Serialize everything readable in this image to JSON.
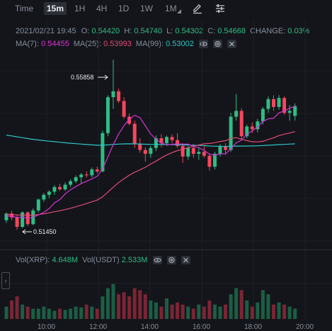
{
  "toolbar": {
    "time_label": "Time",
    "intervals": [
      "15m",
      "1H",
      "4H",
      "1D",
      "1W",
      "1M"
    ],
    "active_interval": "15m"
  },
  "ohlc": {
    "datetime": "2021/02/21 19:45",
    "o_label": "O:",
    "o": "0.54420",
    "h_label": "H:",
    "h": "0.54740",
    "l_label": "L:",
    "l": "0.54302",
    "c_label": "C:",
    "c": "0.54668",
    "change_label": "CHANGE:",
    "change": "0.03%"
  },
  "ma": {
    "ma7_label": "MA(7):",
    "ma7": "0.54455",
    "ma25_label": "MA(25):",
    "ma25": "0.53993",
    "ma99_label": "MA(99):",
    "ma99": "0.53002"
  },
  "annotations": {
    "high": "0.55858",
    "low": "0.51450"
  },
  "volume": {
    "vol_xrp_label": "Vol(XRP):",
    "vol_xrp": "4.648M",
    "vol_usdt_label": "Vol(USDT)",
    "vol_usdt": "2.533M"
  },
  "x_axis": [
    "10:00",
    "12:00",
    "14:00",
    "16:00",
    "18:00",
    "20:00"
  ],
  "colors": {
    "up": "#2ebd85",
    "down": "#f6465d",
    "ma7": "#d633d6",
    "ma25": "#e64a77",
    "ma99": "#2bc6c7",
    "background": "#14151a"
  },
  "icons": [
    "pencil-icon",
    "settings-sliders-icon",
    "eye-icon",
    "settings-icon",
    "close-icon",
    "chevron-right-icon"
  ],
  "chart_data": {
    "type": "candlestick",
    "symbol": "XRP/USDT",
    "interval": "15m",
    "x_ticks": [
      "10:00",
      "12:00",
      "14:00",
      "16:00",
      "18:00",
      "20:00"
    ],
    "ohlc": [
      [
        0.5175,
        0.5195,
        0.5168,
        0.5192
      ],
      [
        0.5192,
        0.5199,
        0.5175,
        0.5182
      ],
      [
        0.5182,
        0.519,
        0.5151,
        0.5158
      ],
      [
        0.5158,
        0.5198,
        0.5155,
        0.5195
      ],
      [
        0.5195,
        0.5198,
        0.516,
        0.5165
      ],
      [
        0.5165,
        0.5205,
        0.5162,
        0.52
      ],
      [
        0.52,
        0.523,
        0.5195,
        0.5228
      ],
      [
        0.5228,
        0.5245,
        0.5222,
        0.524
      ],
      [
        0.524,
        0.5252,
        0.5232,
        0.5248
      ],
      [
        0.5248,
        0.5265,
        0.524,
        0.526
      ],
      [
        0.526,
        0.5268,
        0.525,
        0.5254
      ],
      [
        0.5254,
        0.5272,
        0.525,
        0.5266
      ],
      [
        0.5266,
        0.528,
        0.526,
        0.5275
      ],
      [
        0.5275,
        0.529,
        0.527,
        0.5285
      ],
      [
        0.5285,
        0.5296,
        0.527,
        0.5292
      ],
      [
        0.5292,
        0.53,
        0.5284,
        0.529
      ],
      [
        0.529,
        0.531,
        0.5285,
        0.5305
      ],
      [
        0.5305,
        0.5312,
        0.5295,
        0.53
      ],
      [
        0.53,
        0.5405,
        0.5298,
        0.5398
      ],
      [
        0.5398,
        0.5495,
        0.539,
        0.549
      ],
      [
        0.549,
        0.5586,
        0.546,
        0.5505
      ],
      [
        0.5505,
        0.5512,
        0.5475,
        0.548
      ],
      [
        0.548,
        0.549,
        0.5435,
        0.544
      ],
      [
        0.544,
        0.5448,
        0.5418,
        0.5422
      ],
      [
        0.5422,
        0.543,
        0.536,
        0.537
      ],
      [
        0.537,
        0.5385,
        0.5348,
        0.5355
      ],
      [
        0.5355,
        0.5362,
        0.5325,
        0.5345
      ],
      [
        0.5345,
        0.5365,
        0.5335,
        0.536
      ],
      [
        0.536,
        0.5392,
        0.5352,
        0.5385
      ],
      [
        0.5385,
        0.5395,
        0.5362,
        0.5372
      ],
      [
        0.5372,
        0.5392,
        0.5365,
        0.5388
      ],
      [
        0.5388,
        0.5395,
        0.5372,
        0.538
      ],
      [
        0.538,
        0.5398,
        0.536,
        0.5365
      ],
      [
        0.5365,
        0.5372,
        0.5322,
        0.5338
      ],
      [
        0.5338,
        0.5365,
        0.533,
        0.536
      ],
      [
        0.536,
        0.537,
        0.5335,
        0.5345
      ],
      [
        0.5345,
        0.536,
        0.533,
        0.535
      ],
      [
        0.535,
        0.5365,
        0.5335,
        0.534
      ],
      [
        0.534,
        0.5345,
        0.5302,
        0.5312
      ],
      [
        0.5312,
        0.535,
        0.5305,
        0.5345
      ],
      [
        0.5345,
        0.537,
        0.5338,
        0.5365
      ],
      [
        0.5365,
        0.5372,
        0.5345,
        0.5355
      ],
      [
        0.5355,
        0.545,
        0.535,
        0.544
      ],
      [
        0.544,
        0.5498,
        0.543,
        0.5455
      ],
      [
        0.5455,
        0.5462,
        0.538,
        0.539
      ],
      [
        0.539,
        0.542,
        0.5385,
        0.5415
      ],
      [
        0.5415,
        0.5425,
        0.5398,
        0.5408
      ],
      [
        0.5408,
        0.5435,
        0.54,
        0.5428
      ],
      [
        0.5428,
        0.5465,
        0.542,
        0.546
      ],
      [
        0.546,
        0.5492,
        0.545,
        0.5485
      ],
      [
        0.5485,
        0.5495,
        0.5455,
        0.5465
      ],
      [
        0.5465,
        0.5495,
        0.5458,
        0.5488
      ],
      [
        0.5488,
        0.5492,
        0.5445,
        0.545
      ],
      [
        0.545,
        0.547,
        0.543,
        0.5455
      ],
      [
        0.5442,
        0.5474,
        0.543,
        0.5467
      ]
    ],
    "volume_relative": [
      0.3,
      0.45,
      0.55,
      0.35,
      0.3,
      0.25,
      0.25,
      0.3,
      0.25,
      0.2,
      0.25,
      0.22,
      0.25,
      0.3,
      0.28,
      0.35,
      0.3,
      0.25,
      0.55,
      0.75,
      0.85,
      0.6,
      0.65,
      0.55,
      0.75,
      0.7,
      0.6,
      0.45,
      0.4,
      0.3,
      0.5,
      0.35,
      0.4,
      0.35,
      0.3,
      0.25,
      0.35,
      0.3,
      0.45,
      0.35,
      0.3,
      0.35,
      0.6,
      0.75,
      0.7,
      0.45,
      0.3,
      0.4,
      0.7,
      0.6,
      0.35,
      0.4,
      0.35,
      0.3,
      0.25
    ],
    "ma_lines": [
      "MA(7)",
      "MA(25)",
      "MA(99)"
    ],
    "grid": true
  }
}
